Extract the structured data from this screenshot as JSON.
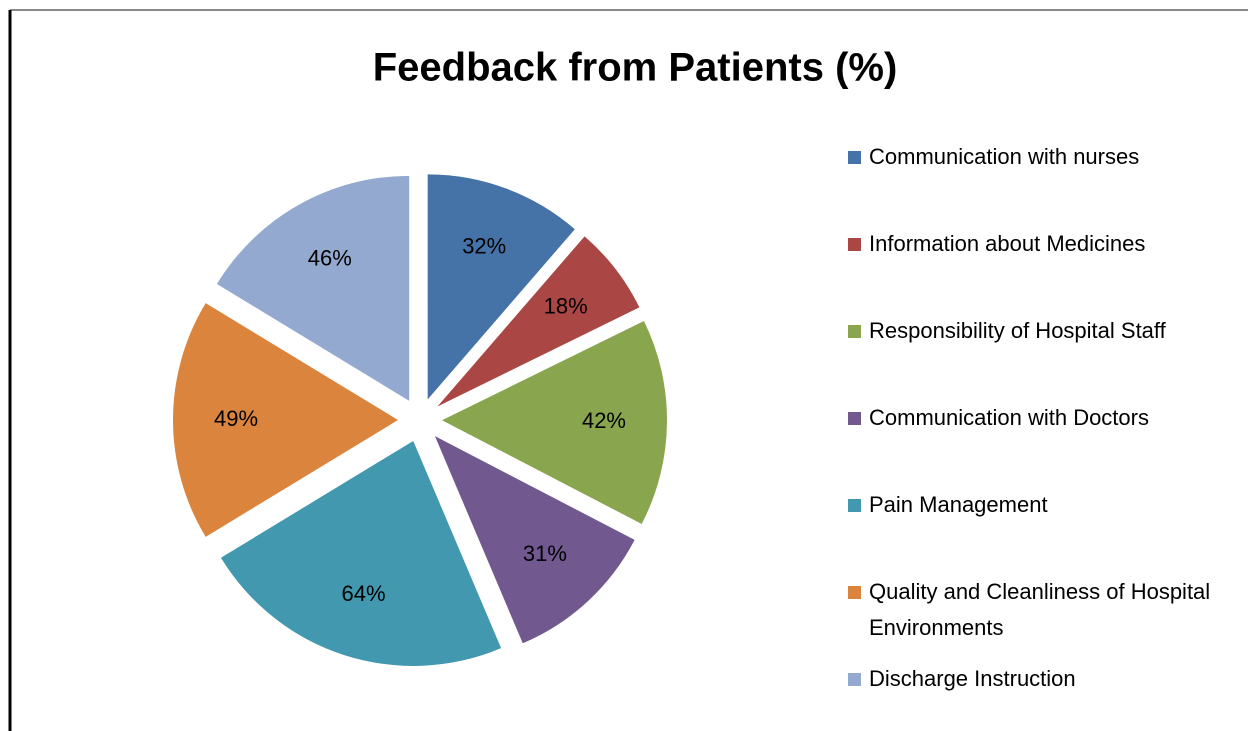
{
  "chart_data": {
    "type": "pie",
    "title": "Feedback from Patients (%)",
    "categories": [
      "Communication with nurses",
      "Information about Medicines",
      "Responsibility of Hospital Staff",
      "Communication with Doctors",
      "Pain Management",
      "Quality and Cleanliness of Hospital Environments",
      "Discharge Instruction"
    ],
    "values": [
      32,
      18,
      42,
      31,
      64,
      49,
      46
    ],
    "value_labels": [
      "32%",
      "18%",
      "42%",
      "31%",
      "64%",
      "49%",
      "46%"
    ],
    "colors": [
      "#4572a7",
      "#aa4643",
      "#89a54e",
      "#71588f",
      "#4198af",
      "#db843d",
      "#93a9cf"
    ],
    "legend": "right"
  }
}
